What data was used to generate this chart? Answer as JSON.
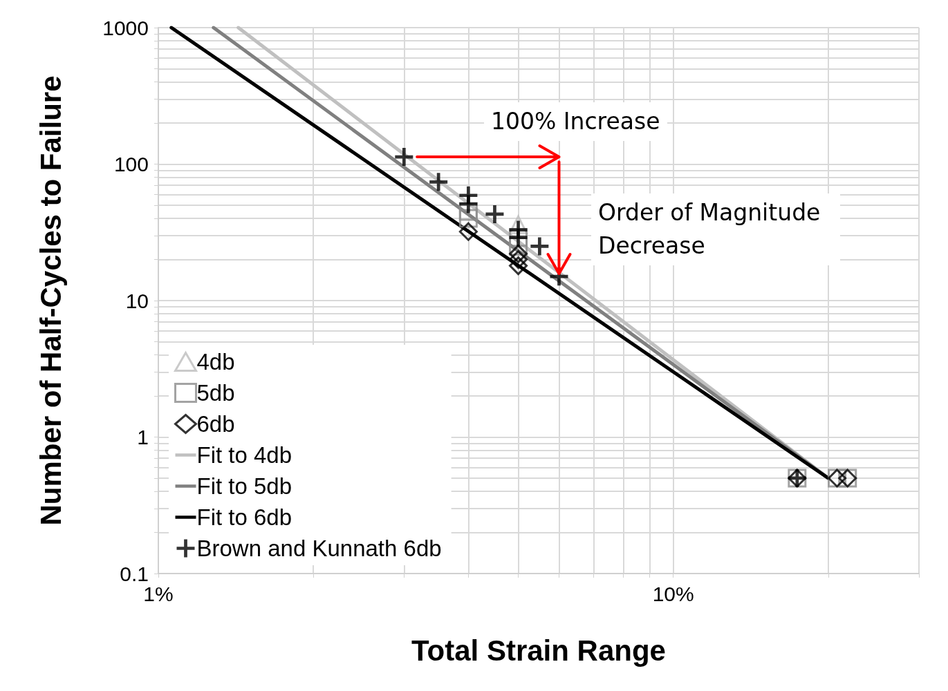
{
  "chart_data": {
    "type": "scatter",
    "xlabel": "Total Strain Range",
    "ylabel": "Number of Half-Cycles to Failure",
    "log": "xy",
    "xlim": [
      1,
      30
    ],
    "xticks": [
      {
        "value": 1,
        "label": "1%"
      },
      {
        "value": 2,
        "label": null
      },
      {
        "value": 3,
        "label": null
      },
      {
        "value": 4,
        "label": null
      },
      {
        "value": 5,
        "label": null
      },
      {
        "value": 6,
        "label": null
      },
      {
        "value": 7,
        "label": null
      },
      {
        "value": 8,
        "label": null
      },
      {
        "value": 9,
        "label": null
      },
      {
        "value": 10,
        "label": "10%"
      },
      {
        "value": 20,
        "label": null
      },
      {
        "value": 30,
        "label": null
      }
    ],
    "ylim": [
      0.1,
      1000
    ],
    "yticks": [
      0.1,
      {
        "value": 0.2,
        "label": null
      },
      {
        "value": 0.3,
        "label": null
      },
      {
        "value": 0.4,
        "label": null
      },
      {
        "value": 0.5,
        "label": null
      },
      {
        "value": 0.6,
        "label": null
      },
      {
        "value": 0.7,
        "label": null
      },
      {
        "value": 0.8,
        "label": null
      },
      {
        "value": 0.9,
        "label": null
      },
      1,
      {
        "value": 2,
        "label": null
      },
      {
        "value": 3,
        "label": null
      },
      {
        "value": 4,
        "label": null
      },
      {
        "value": 5,
        "label": null
      },
      {
        "value": 6,
        "label": null
      },
      {
        "value": 7,
        "label": null
      },
      {
        "value": 8,
        "label": null
      },
      {
        "value": 9,
        "label": null
      },
      10,
      {
        "value": 20,
        "label": null
      },
      {
        "value": 30,
        "label": null
      },
      {
        "value": 40,
        "label": null
      },
      {
        "value": 50,
        "label": null
      },
      {
        "value": 60,
        "label": null
      },
      {
        "value": 70,
        "label": null
      },
      {
        "value": 80,
        "label": null
      },
      {
        "value": 90,
        "label": null
      },
      100,
      {
        "value": 200,
        "label": null
      },
      {
        "value": 300,
        "label": null
      },
      {
        "value": 400,
        "label": null
      },
      {
        "value": 500,
        "label": null
      },
      {
        "value": 600,
        "label": null
      },
      {
        "value": 700,
        "label": null
      },
      {
        "value": 800,
        "label": null
      },
      {
        "value": 900,
        "label": null
      },
      1000
    ],
    "grid": true,
    "legend": "bottom left",
    "annotations": [
      "100% Increase",
      {
        "text": "Order of Magnitude Decrease",
        "x": 6,
        "y": 15
      }
    ],
    "series": [
      {
        "name": "4db",
        "marker": "triangle",
        "color": "#bdbdbd",
        "x": [
          5
        ],
        "values": [
          36
        ]
      },
      {
        "name": "5db",
        "marker": "square",
        "color": "#8c8c8c",
        "x": [
          4,
          4,
          5,
          5,
          17.4,
          20.8,
          21.8
        ],
        "values": [
          45,
          40,
          29,
          25,
          0.5,
          0.5,
          0.5
        ]
      },
      {
        "name": "6db",
        "marker": "diamond",
        "color": "#000000",
        "x": [
          4,
          5,
          5,
          5,
          17.4,
          20.8,
          21.8
        ],
        "values": [
          32,
          22,
          20,
          18,
          0.5,
          0.5,
          0.5
        ]
      },
      {
        "name": "Fit to 4db",
        "type": "line",
        "marker": "none",
        "color": "#c0c0c0",
        "x": [
          1.43,
          20
        ],
        "values": [
          1000,
          0.5
        ]
      },
      {
        "name": "Fit to 5db",
        "type": "line",
        "marker": "none",
        "color": "#808080",
        "x": [
          1.28,
          20
        ],
        "values": [
          1000,
          0.5
        ]
      },
      {
        "name": "Fit to 6db",
        "type": "line",
        "marker": "none",
        "color": "#000000",
        "x": [
          1.06,
          20
        ],
        "values": [
          1000,
          0.5
        ]
      },
      {
        "name": "Brown and Kunnath 6db",
        "marker": "cross",
        "color": "#000000",
        "x": [
          3,
          3.5,
          4,
          4,
          4.5,
          5,
          5,
          5.5,
          6,
          17.4
        ],
        "values": [
          113,
          74,
          59,
          51,
          43,
          33,
          29,
          25,
          15,
          0.5
        ]
      }
    ]
  }
}
